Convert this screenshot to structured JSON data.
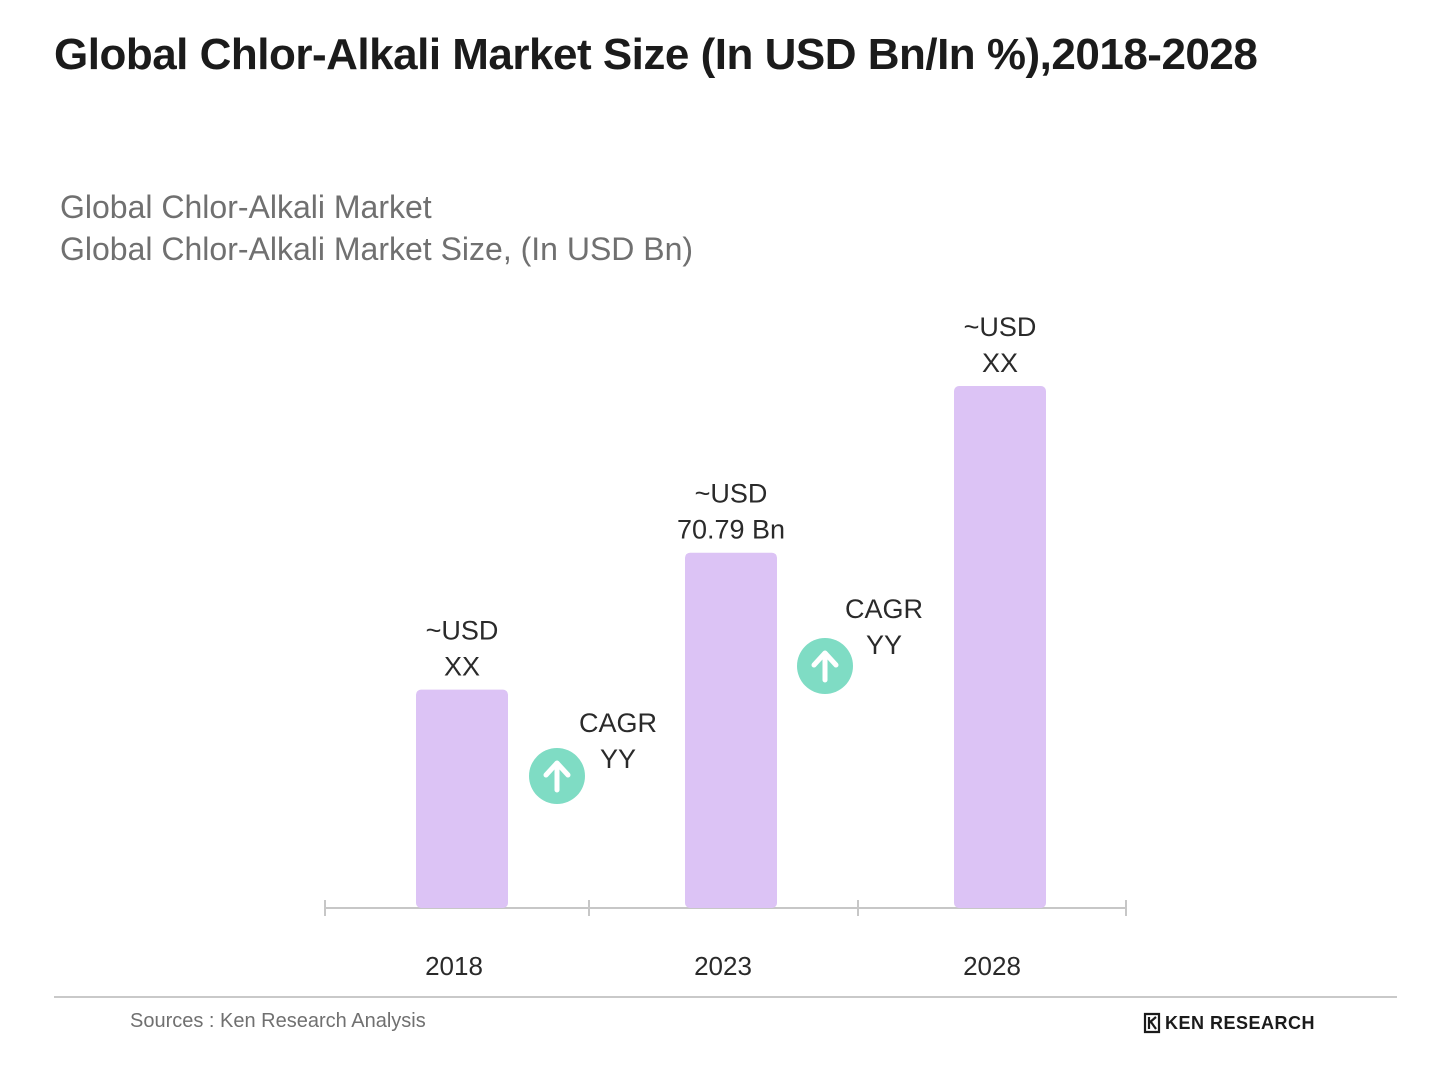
{
  "title": "Global Chlor-Alkali Market Size (In USD Bn/In %),2018-2028",
  "subtitle_line1": "Global Chlor-Alkali Market",
  "subtitle_line2": "Global Chlor-Alkali Market Size, (In USD Bn)",
  "source": "Sources : Ken Research Analysis",
  "brand": "KEN RESEARCH",
  "colors": {
    "bar": "#dcc3f5",
    "arrow_circle": "#7fdcc4",
    "axis": "#c7c7c7",
    "label": "#2a2a2a"
  },
  "chart_data": {
    "type": "bar",
    "categories": [
      "2018",
      "2023",
      "2028"
    ],
    "values": [
      43.5,
      70.79,
      104
    ],
    "value_labels": [
      [
        "~USD",
        "XX"
      ],
      [
        "~USD",
        "70.79 Bn"
      ],
      [
        "~USD",
        "XX"
      ]
    ],
    "annotations": [
      {
        "between": [
          "2018",
          "2023"
        ],
        "lines": [
          "CAGR",
          "YY"
        ],
        "icon": "up-arrow-icon"
      },
      {
        "between": [
          "2023",
          "2028"
        ],
        "lines": [
          "CAGR",
          "YY"
        ],
        "icon": "up-arrow-icon"
      }
    ],
    "ylim": [
      0,
      104
    ],
    "grid": false,
    "legend": "none"
  }
}
